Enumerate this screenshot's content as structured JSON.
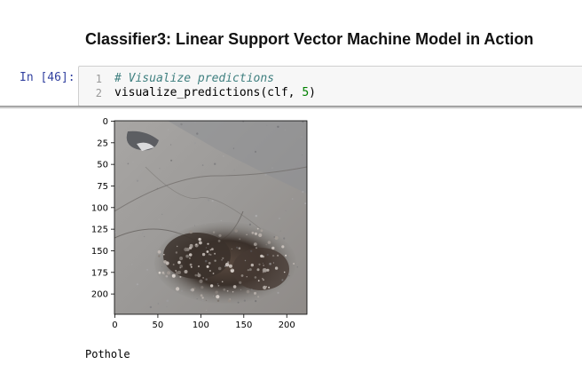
{
  "heading": "Classifier3: Linear Support Vector Machine Model in Action",
  "cell": {
    "prompt": "In [46]:",
    "lines": [
      {
        "number": "1",
        "comment": "# Visualize predictions"
      },
      {
        "number": "2",
        "code_prefix": "visualize_predictions(clf, ",
        "code_num": "5",
        "code_suffix": ")"
      }
    ]
  },
  "output": {
    "image": {
      "description_icon": "pothole-road-photo",
      "y_ticks": [
        "0",
        "25",
        "50",
        "75",
        "100",
        "125",
        "150",
        "175",
        "200"
      ],
      "x_ticks": [
        "0",
        "50",
        "100",
        "150",
        "200"
      ]
    },
    "prediction_label": "Pothole"
  },
  "colors": {
    "prompt": "#303f9f",
    "comment": "#408080",
    "number": "#008000",
    "editor_bg": "#f7f7f7"
  }
}
